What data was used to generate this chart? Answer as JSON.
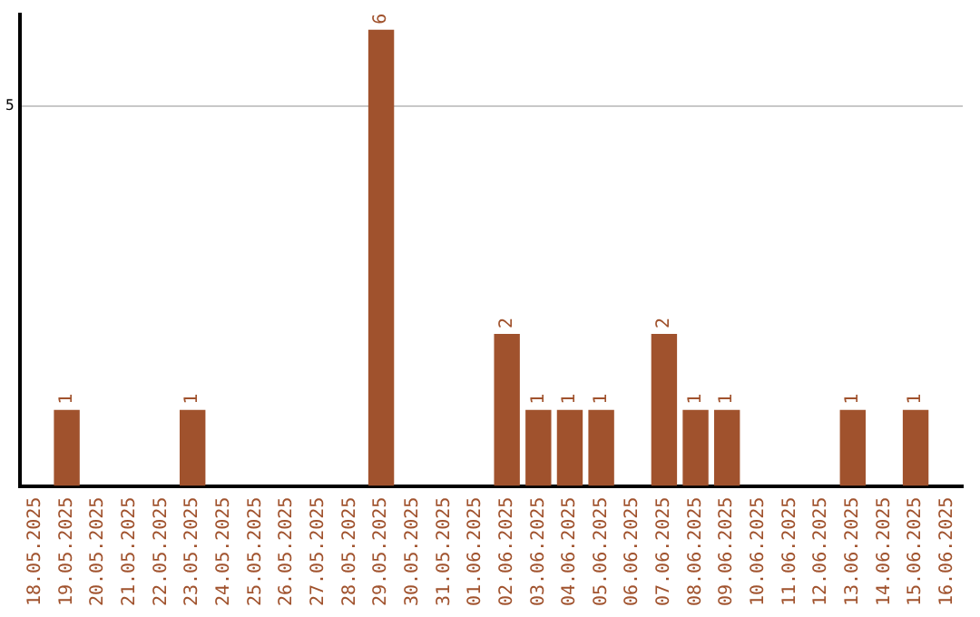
{
  "chart_data": {
    "type": "bar",
    "categories": [
      "18.05.2025",
      "19.05.2025",
      "20.05.2025",
      "21.05.2025",
      "22.05.2025",
      "23.05.2025",
      "24.05.2025",
      "25.05.2025",
      "26.05.2025",
      "27.05.2025",
      "28.05.2025",
      "29.05.2025",
      "30.05.2025",
      "31.05.2025",
      "01.06.2025",
      "02.06.2025",
      "03.06.2025",
      "04.06.2025",
      "05.06.2025",
      "06.06.2025",
      "07.06.2025",
      "08.06.2025",
      "09.06.2025",
      "10.06.2025",
      "11.06.2025",
      "12.06.2025",
      "13.06.2025",
      "14.06.2025",
      "15.06.2025",
      "16.06.2025"
    ],
    "values": [
      null,
      1,
      null,
      null,
      null,
      1,
      null,
      null,
      null,
      null,
      null,
      6,
      null,
      null,
      null,
      2,
      1,
      1,
      1,
      null,
      2,
      1,
      1,
      null,
      null,
      null,
      1,
      null,
      1,
      null
    ],
    "color": "#a0522d",
    "ylim": [
      0,
      6.2
    ],
    "yticks": [
      5
    ],
    "grid": "y",
    "legend": false,
    "data_labels": true
  }
}
